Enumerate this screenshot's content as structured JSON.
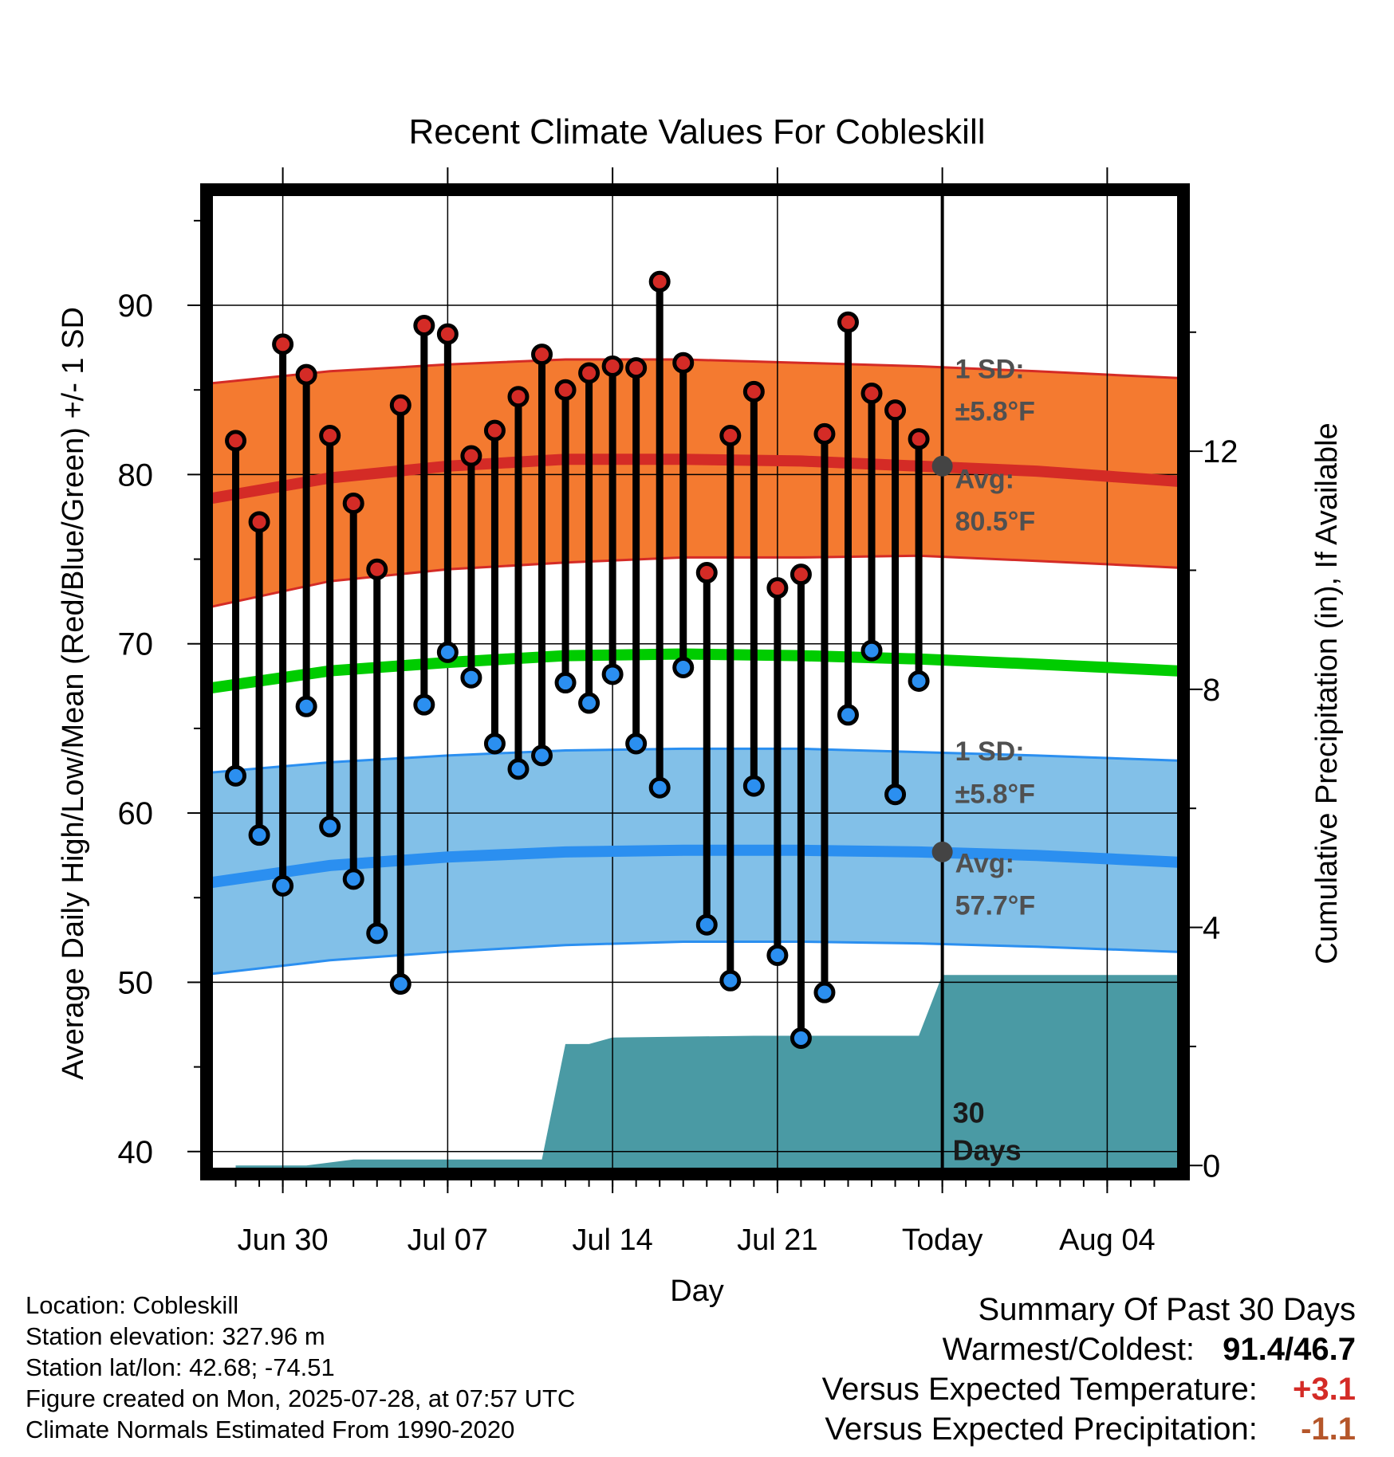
{
  "chart_data": {
    "type": "line",
    "title": "Recent Climate Values For Cobleskill",
    "xlabel": "Day",
    "ylabel": "Average Daily High/Low/Mean (Red/Blue/Green) +/- 1 SD",
    "y2label": "Cumulative Precipitation (in), If Available",
    "xlim": [
      "2025-06-27",
      "2025-08-07"
    ],
    "ylim": [
      39.0,
      96.5
    ],
    "y2lim": [
      -0.05,
      16.3
    ],
    "xticks": [
      {
        "date": "2025-06-30",
        "label": "Jun 30"
      },
      {
        "date": "2025-07-07",
        "label": "Jul 07"
      },
      {
        "date": "2025-07-14",
        "label": "Jul 14"
      },
      {
        "date": "2025-07-21",
        "label": "Jul 21"
      },
      {
        "date": "2025-07-28",
        "label": "Today"
      },
      {
        "date": "2025-08-04",
        "label": "Aug 04"
      }
    ],
    "yticks": [
      40,
      50,
      60,
      70,
      80,
      90
    ],
    "yticks_right": [
      0,
      4,
      8,
      12
    ],
    "today": "2025-07-28",
    "normals": {
      "dates": [
        "2025-06-27",
        "2025-07-02",
        "2025-07-07",
        "2025-07-12",
        "2025-07-17",
        "2025-07-22",
        "2025-07-27",
        "2025-08-01",
        "2025-08-07"
      ],
      "high_avg": [
        78.6,
        79.8,
        80.5,
        80.9,
        80.9,
        80.8,
        80.5,
        80.2,
        79.6
      ],
      "high_sd_upper": [
        85.4,
        86.1,
        86.5,
        86.8,
        86.8,
        86.6,
        86.4,
        86.1,
        85.7
      ],
      "high_sd_lower": [
        72.2,
        73.7,
        74.4,
        74.8,
        75.1,
        75.1,
        75.2,
        74.9,
        74.5
      ],
      "mean_avg": [
        67.4,
        68.4,
        68.9,
        69.3,
        69.4,
        69.3,
        69.1,
        68.8,
        68.4
      ],
      "low_avg": [
        55.9,
        56.9,
        57.4,
        57.7,
        57.8,
        57.8,
        57.7,
        57.5,
        57.1
      ],
      "low_sd_upper": [
        62.4,
        63.0,
        63.4,
        63.7,
        63.8,
        63.8,
        63.6,
        63.4,
        63.1
      ],
      "low_sd_lower": [
        50.5,
        51.3,
        51.8,
        52.2,
        52.4,
        52.4,
        52.3,
        52.1,
        51.8
      ]
    },
    "daily": {
      "dates": [
        "2025-06-28",
        "2025-06-29",
        "2025-06-30",
        "2025-07-01",
        "2025-07-02",
        "2025-07-03",
        "2025-07-04",
        "2025-07-05",
        "2025-07-06",
        "2025-07-07",
        "2025-07-08",
        "2025-07-09",
        "2025-07-10",
        "2025-07-11",
        "2025-07-12",
        "2025-07-13",
        "2025-07-14",
        "2025-07-15",
        "2025-07-16",
        "2025-07-17",
        "2025-07-18",
        "2025-07-19",
        "2025-07-20",
        "2025-07-21",
        "2025-07-22",
        "2025-07-23",
        "2025-07-24",
        "2025-07-25",
        "2025-07-26",
        "2025-07-27"
      ],
      "high": [
        82.0,
        77.2,
        87.7,
        85.9,
        82.3,
        78.3,
        74.4,
        84.1,
        88.8,
        88.3,
        81.1,
        82.6,
        84.6,
        87.1,
        85.0,
        86.0,
        86.4,
        86.3,
        91.4,
        86.6,
        74.2,
        82.3,
        84.9,
        73.3,
        74.1,
        82.4,
        89.0,
        84.8,
        83.8,
        82.1
      ],
      "low": [
        62.2,
        58.7,
        55.7,
        66.3,
        59.2,
        56.1,
        52.9,
        49.9,
        66.4,
        69.5,
        68.0,
        64.1,
        62.6,
        63.4,
        67.7,
        66.5,
        68.2,
        64.1,
        61.5,
        68.6,
        53.4,
        50.1,
        61.6,
        51.6,
        46.7,
        49.4,
        65.8,
        69.6,
        61.1,
        67.8
      ]
    },
    "precip": {
      "dates": [
        "2025-06-28",
        "2025-07-01",
        "2025-07-03",
        "2025-07-11",
        "2025-07-12",
        "2025-07-13",
        "2025-07-14",
        "2025-07-20",
        "2025-07-27",
        "2025-07-28",
        "2025-08-07"
      ],
      "cumulative": [
        0.0,
        0.0,
        0.1,
        0.1,
        2.04,
        2.04,
        2.15,
        2.18,
        2.18,
        3.2,
        3.2
      ]
    },
    "annotations": {
      "high_sd": [
        "1 SD:",
        "±5.8°F"
      ],
      "high_avg": [
        "Avg:",
        "80.5°F"
      ],
      "low_sd": [
        "1 SD:",
        "±5.8°F"
      ],
      "low_avg": [
        "Avg:",
        "57.7°F"
      ],
      "days": [
        "30",
        "Days"
      ],
      "high_avg_value": 80.5,
      "low_avg_value": 57.7
    },
    "colors": {
      "high": "#d42b26",
      "high_band": "#f47a30",
      "mean": "#00cc00",
      "low": "#2b8ff0",
      "low_band": "#82c0e8",
      "low_band_edge": "#2b8ff0",
      "precip": "#4a9aa4",
      "annotation": "#505050",
      "today_marker": "#444444"
    }
  },
  "info": {
    "location": "Location: Cobleskill",
    "elevation": "Station elevation: 327.96 m",
    "latlon": "Station lat/lon: 42.68; -74.51",
    "created": "Figure created on Mon, 2025-07-28, at 07:57 UTC",
    "normals_period": "Climate Normals Estimated From 1990-2020"
  },
  "summary": {
    "title": "Summary Of Past 30 Days",
    "warm_cold_label": "Warmest/Coldest:",
    "warm_cold_value": "91.4/46.7",
    "temp_label": "Versus Expected Temperature:",
    "temp_value": "+3.1",
    "temp_color": "#d42b26",
    "precip_label": "Versus Expected Precipitation:",
    "precip_value": "-1.1",
    "precip_color": "#b5562a"
  }
}
